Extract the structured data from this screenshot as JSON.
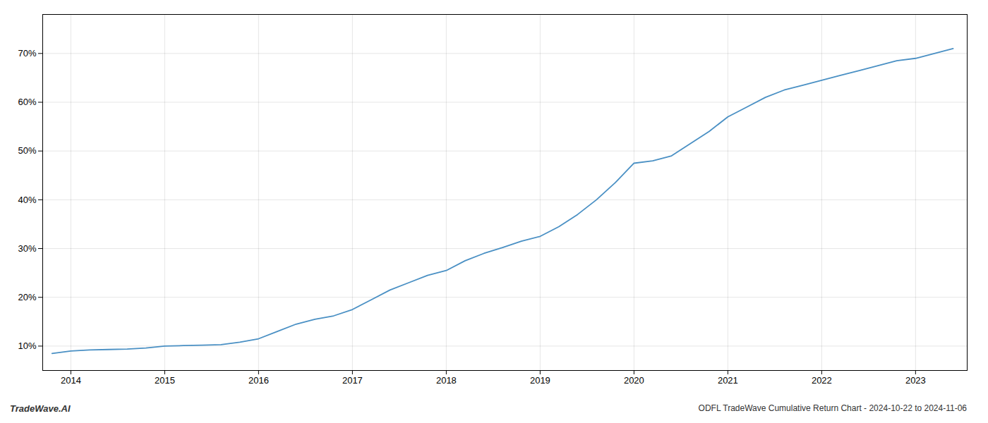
{
  "chart_data": {
    "type": "line",
    "title": "ODFL TradeWave Cumulative Return Chart - 2024-10-22 to 2024-11-06",
    "annotations": [
      "TradeWave.AI"
    ],
    "x": [
      2013.8,
      2014.0,
      2014.2,
      2014.4,
      2014.6,
      2014.8,
      2015.0,
      2015.2,
      2015.4,
      2015.6,
      2015.8,
      2016.0,
      2016.2,
      2016.4,
      2016.6,
      2016.8,
      2017.0,
      2017.2,
      2017.4,
      2017.6,
      2017.8,
      2018.0,
      2018.2,
      2018.4,
      2018.6,
      2018.8,
      2019.0,
      2019.2,
      2019.4,
      2019.6,
      2019.8,
      2020.0,
      2020.2,
      2020.4,
      2020.6,
      2020.8,
      2021.0,
      2021.2,
      2021.4,
      2021.6,
      2021.8,
      2022.0,
      2022.2,
      2022.4,
      2022.6,
      2022.8,
      2023.0,
      2023.2,
      2023.4
    ],
    "values": [
      8.5,
      9.0,
      9.2,
      9.3,
      9.4,
      9.6,
      10.0,
      10.1,
      10.2,
      10.3,
      10.8,
      11.5,
      13.0,
      14.5,
      15.5,
      16.2,
      17.5,
      19.5,
      21.5,
      23.0,
      24.5,
      25.5,
      27.5,
      29.0,
      30.2,
      31.5,
      32.5,
      34.5,
      37.0,
      40.0,
      43.5,
      47.5,
      48.0,
      49.0,
      51.5,
      54.0,
      57.0,
      59.0,
      61.0,
      62.5,
      63.5,
      64.5,
      65.5,
      66.5,
      67.5,
      68.5,
      69.0,
      70.0,
      71.0
    ],
    "color": "#4a90c4",
    "xlim": [
      2013.7,
      2023.55
    ],
    "ylim": [
      5,
      78
    ],
    "xticks": [
      2014,
      2015,
      2016,
      2017,
      2018,
      2019,
      2020,
      2021,
      2022,
      2023
    ],
    "yticks": [
      {
        "value": 10,
        "label": "10%"
      },
      {
        "value": 20,
        "label": "20%"
      },
      {
        "value": 30,
        "label": "30%"
      },
      {
        "value": 40,
        "label": "40%"
      },
      {
        "value": 50,
        "label": "50%"
      },
      {
        "value": 60,
        "label": "60%"
      },
      {
        "value": 70,
        "label": "70%"
      }
    ],
    "grid": true
  }
}
